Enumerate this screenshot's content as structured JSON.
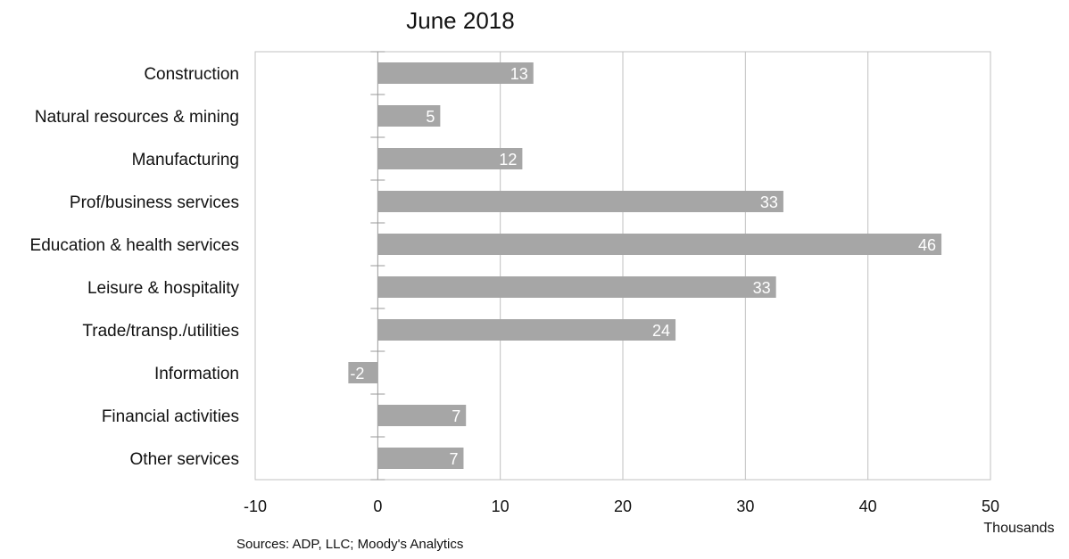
{
  "chart_data": {
    "type": "bar",
    "orientation": "horizontal",
    "title": "June 2018",
    "categories": [
      "Construction",
      "Natural resources & mining",
      "Manufacturing",
      "Prof/business services",
      "Education & health services",
      "Leisure & hospitality",
      "Trade/transp./utilities",
      "Information",
      "Financial activities",
      "Other services"
    ],
    "values": [
      12.7,
      5.1,
      11.8,
      33.1,
      46.0,
      32.5,
      24.3,
      -2.4,
      7.2,
      7.0
    ],
    "data_labels": [
      "13",
      "5",
      "12",
      "33",
      "46",
      "33",
      "24",
      "-2",
      "7",
      "7"
    ],
    "xlim": [
      -10,
      50
    ],
    "xticks": [
      -10,
      0,
      10,
      20,
      30,
      40,
      50
    ],
    "xtick_labels": [
      "-10",
      "0",
      "10",
      "20",
      "30",
      "40",
      "50"
    ],
    "xlabel": "Thousands",
    "ylabel": "",
    "grid": "vertical",
    "legend": "none",
    "bar_color": "#a6a6a6",
    "source": "Sources: ADP, LLC; Moody's Analytics"
  }
}
